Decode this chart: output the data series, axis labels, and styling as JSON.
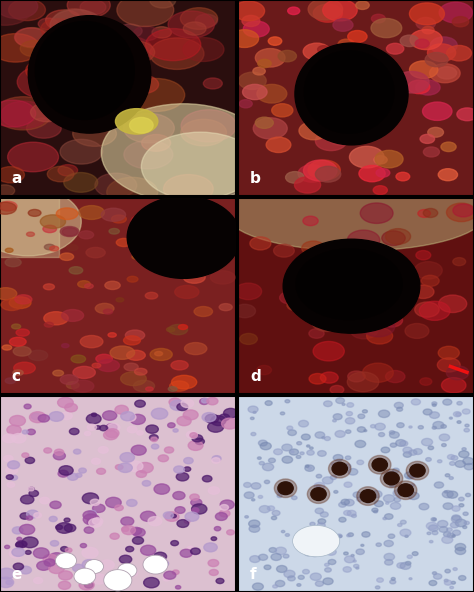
{
  "title": "",
  "layout": {
    "rows": 3,
    "cols": 2,
    "labels": [
      "a",
      "b",
      "c",
      "d",
      "e",
      "f"
    ]
  },
  "label_color": "#ffffff",
  "border_color": "#000000",
  "border_width": 1.5,
  "background_color": "#000000",
  "label_fontsize": 11,
  "label_fontweight": "bold",
  "fig_width": 4.74,
  "fig_height": 5.92,
  "dpi": 100,
  "cell_colors_list": [
    [
      "#0.8,0.5,0.7",
      "#0.6,0.3,0.6",
      "#0.9,0.75,0.85",
      "#0.3,0.1,0.4",
      "#0.7,0.6,0.8"
    ],
    [
      "#0.8,0.5,0.7",
      "#0.6,0.3,0.6",
      "#0.9,0.75,0.85",
      "#0.3,0.1,0.4",
      "#0.7,0.6,0.8"
    ]
  ]
}
